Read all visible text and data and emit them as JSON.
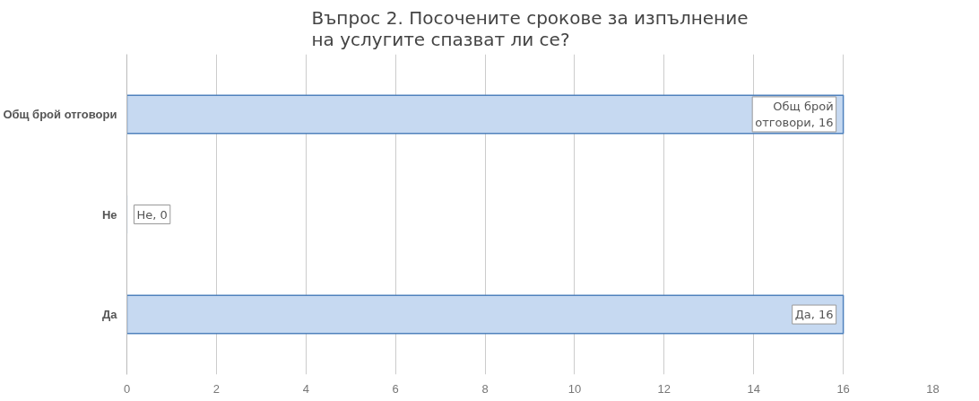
{
  "chart_data": {
    "type": "bar",
    "orientation": "horizontal",
    "title": "Въпрос 2. Посочените срокове за изпълнение\nна услугите спазват ли се?",
    "categories": [
      "Общ брой отговори",
      "Не",
      "Да"
    ],
    "values": [
      16,
      0,
      16
    ],
    "value_labels": [
      "Общ брой отговори, 16",
      "Не, 0",
      "Да, 16"
    ],
    "color": "#c6d9f1",
    "xlim": [
      0,
      18
    ],
    "xticks": [
      0,
      2,
      4,
      6,
      8,
      10,
      12,
      14,
      16,
      18
    ],
    "grid": "x"
  }
}
